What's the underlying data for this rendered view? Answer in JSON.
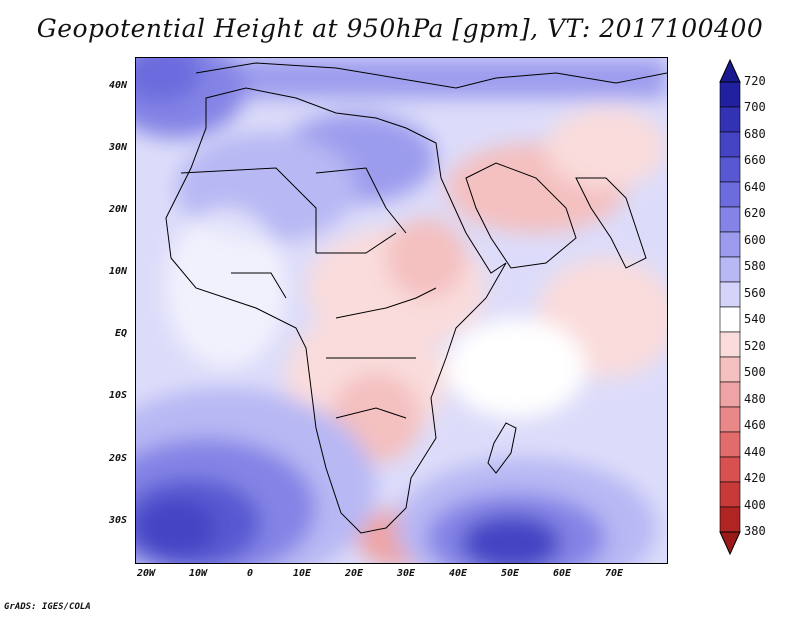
{
  "title": "Geopotential Height at 950hPa [gpm], VT: 2017100400",
  "credit": "GrADS: IGES/COLA",
  "map": {
    "lat_labels": [
      "40N",
      "30N",
      "20N",
      "10N",
      "EQ",
      "10S",
      "20S",
      "30S"
    ],
    "lon_labels": [
      "20W",
      "10W",
      "0",
      "10E",
      "20E",
      "30E",
      "40E",
      "50E",
      "60E",
      "70E"
    ]
  },
  "colorbar": {
    "labels": [
      "720",
      "700",
      "680",
      "660",
      "640",
      "620",
      "600",
      "580",
      "560",
      "540",
      "520",
      "500",
      "480",
      "460",
      "440",
      "420",
      "400",
      "380"
    ],
    "colors": [
      "#2020a0",
      "#3232b4",
      "#4444c4",
      "#5858d2",
      "#6c6cde",
      "#8484e6",
      "#9c9cee",
      "#b8b8f4",
      "#d4d4f8",
      "#ffffff",
      "#fadcdc",
      "#f4c0c0",
      "#eea4a4",
      "#e88888",
      "#e26c6c",
      "#d85050",
      "#c83a3a",
      "#b02424"
    ],
    "top_arrow_color": "#1a1a90",
    "bottom_arrow_color": "#9a1a1a"
  }
}
